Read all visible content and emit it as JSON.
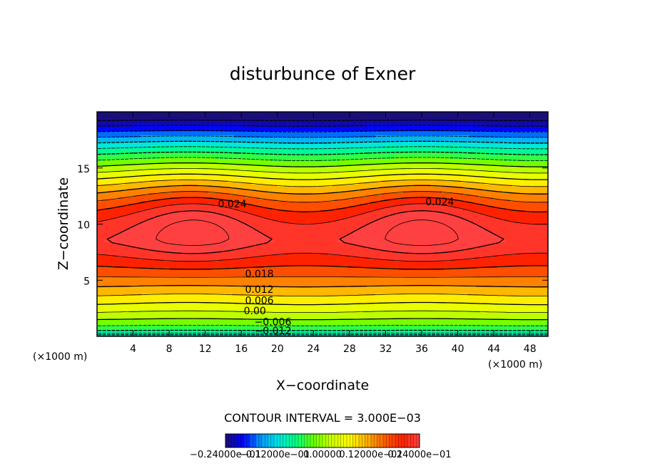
{
  "chart_data": {
    "type": "contour",
    "title": "disturbunce of Exner",
    "xlabel": "X−coordinate",
    "ylabel": "Z−coordinate",
    "x_unit": "(×1000 m)",
    "y_unit": "(×1000 m)",
    "xlim": [
      0,
      50
    ],
    "ylim": [
      0,
      20
    ],
    "x_ticks": [
      "4",
      "8",
      "12",
      "16",
      "20",
      "24",
      "28",
      "32",
      "36",
      "40",
      "44",
      "48"
    ],
    "y_ticks": [
      "5",
      "10",
      "15"
    ],
    "contour_interval_text": "CONTOUR INTERVAL = 3.000E−03",
    "contour_interval": 0.003,
    "contour_labels": [
      {
        "text": "0.024",
        "x": 15,
        "y": 11.8
      },
      {
        "text": "0.024",
        "x": 38,
        "y": 12.0
      },
      {
        "text": "0.018",
        "x": 18,
        "y": 5.6
      },
      {
        "text": "0.012",
        "x": 18,
        "y": 4.2
      },
      {
        "text": "0.006",
        "x": 18,
        "y": 3.2
      },
      {
        "text": "0.00",
        "x": 17.5,
        "y": 2.3
      },
      {
        "text": "−0.006",
        "x": 19.5,
        "y": 1.3
      },
      {
        "text": "−0.012",
        "x": 19.5,
        "y": 0.5
      }
    ],
    "colorbar_labels": [
      "−0.24000e−01",
      "−0.12000e−01",
      "0.00000",
      "0.12000e−01",
      "0.24000e−01"
    ],
    "colorbar_range": [
      -0.024,
      0.024
    ],
    "colormap": [
      "#1a0f7a",
      "#0000ff",
      "#0096ff",
      "#00e5e5",
      "#00ff80",
      "#66ff00",
      "#ccff00",
      "#ffff00",
      "#ffb000",
      "#ff6000",
      "#ff2000",
      "#ff4040"
    ]
  }
}
